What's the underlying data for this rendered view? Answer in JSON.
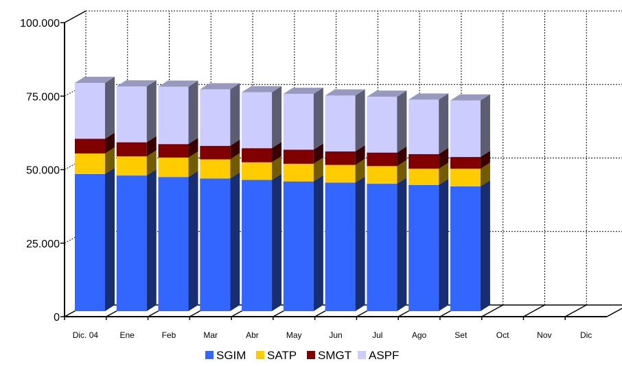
{
  "chart_data": {
    "type": "bar",
    "stacked": true,
    "style": "3d",
    "categories": [
      "Dic. 04",
      "Ene",
      "Feb",
      "Mar",
      "Abr",
      "May",
      "Jun",
      "Jul",
      "Ago",
      "Set",
      "Oct",
      "Nov",
      "Dic"
    ],
    "series": [
      {
        "name": "SGIM",
        "color": "#3366ff",
        "values": [
          48500,
          48000,
          47500,
          47000,
          46500,
          46000,
          45600,
          45200,
          44800,
          44300,
          null,
          null,
          null
        ]
      },
      {
        "name": "SATP",
        "color": "#ffcc00",
        "values": [
          7000,
          6500,
          6600,
          6500,
          6000,
          6000,
          6000,
          6000,
          5500,
          6000,
          null,
          null,
          null
        ]
      },
      {
        "name": "SMGT",
        "color": "#800000",
        "values": [
          5000,
          4800,
          4600,
          4600,
          4800,
          4800,
          4600,
          4600,
          5000,
          4000,
          null,
          null,
          null
        ]
      },
      {
        "name": "ASPF",
        "color": "#ccccff",
        "values": [
          19000,
          19000,
          19500,
          19200,
          19000,
          19000,
          19000,
          19000,
          18500,
          19200,
          null,
          null,
          null
        ]
      }
    ],
    "y_ticks": [
      "0",
      "25.000",
      "50.000",
      "75.000",
      "100.000"
    ],
    "ylim": [
      0,
      100000
    ],
    "grid": true,
    "legend_position": "bottom"
  }
}
